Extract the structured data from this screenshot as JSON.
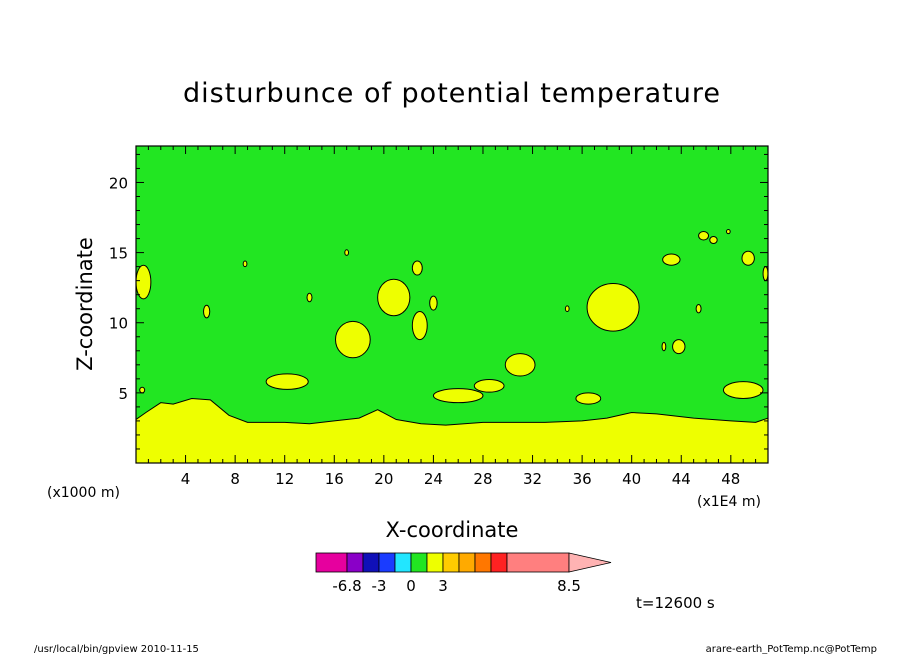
{
  "chart_data": {
    "type": "heatmap",
    "title": "disturbunce of potential temperature",
    "xlabel": "X-coordinate",
    "ylabel": "Z-coordinate",
    "x_unit_note": "(x1E4 m)",
    "y_unit_note": "(x1000 m)",
    "xlim": [
      0,
      51
    ],
    "ylim": [
      0,
      22.6
    ],
    "x_ticks": [
      4,
      8,
      12,
      16,
      20,
      24,
      28,
      32,
      36,
      40,
      44,
      48
    ],
    "y_ticks": [
      5,
      10,
      15,
      20
    ],
    "background_color": "#22e622",
    "region_color": "#eeff00",
    "boundary_layer": [
      [
        0,
        3.1
      ],
      [
        0.8,
        3.6
      ],
      [
        2,
        4.3
      ],
      [
        3,
        4.2
      ],
      [
        4.5,
        4.6
      ],
      [
        6,
        4.5
      ],
      [
        7.5,
        3.4
      ],
      [
        9,
        2.9
      ],
      [
        12,
        2.9
      ],
      [
        14,
        2.8
      ],
      [
        16,
        3.0
      ],
      [
        18,
        3.2
      ],
      [
        19.5,
        3.8
      ],
      [
        21,
        3.1
      ],
      [
        23,
        2.8
      ],
      [
        25,
        2.7
      ],
      [
        28,
        2.9
      ],
      [
        31,
        2.9
      ],
      [
        33,
        2.9
      ],
      [
        36,
        3.0
      ],
      [
        38,
        3.2
      ],
      [
        40,
        3.6
      ],
      [
        42,
        3.5
      ],
      [
        45,
        3.2
      ],
      [
        48,
        3.0
      ],
      [
        50,
        2.9
      ],
      [
        51,
        3.2
      ]
    ],
    "anomaly_patches": [
      {
        "cx": 0.6,
        "cz": 12.9,
        "rx": 0.6,
        "rz": 1.2
      },
      {
        "cx": 0.5,
        "cz": 5.2,
        "rx": 0.2,
        "rz": 0.2
      },
      {
        "cx": 5.7,
        "cz": 10.8,
        "rx": 0.25,
        "rz": 0.45
      },
      {
        "cx": 8.8,
        "cz": 14.2,
        "rx": 0.15,
        "rz": 0.2
      },
      {
        "cx": 14.0,
        "cz": 11.8,
        "rx": 0.2,
        "rz": 0.3
      },
      {
        "cx": 17.0,
        "cz": 15.0,
        "rx": 0.15,
        "rz": 0.2
      },
      {
        "cx": 17.5,
        "cz": 8.8,
        "rx": 1.4,
        "rz": 1.3
      },
      {
        "cx": 20.8,
        "cz": 11.8,
        "rx": 1.3,
        "rz": 1.3
      },
      {
        "cx": 22.7,
        "cz": 13.9,
        "rx": 0.4,
        "rz": 0.5
      },
      {
        "cx": 22.9,
        "cz": 9.8,
        "rx": 0.6,
        "rz": 1.0
      },
      {
        "cx": 24.0,
        "cz": 11.4,
        "rx": 0.3,
        "rz": 0.5
      },
      {
        "cx": 12.2,
        "cz": 5.8,
        "rx": 1.7,
        "rz": 0.55
      },
      {
        "cx": 26.0,
        "cz": 4.8,
        "rx": 2.0,
        "rz": 0.5
      },
      {
        "cx": 28.5,
        "cz": 5.5,
        "rx": 1.2,
        "rz": 0.45
      },
      {
        "cx": 31.0,
        "cz": 7.0,
        "rx": 1.2,
        "rz": 0.8
      },
      {
        "cx": 34.8,
        "cz": 11.0,
        "rx": 0.15,
        "rz": 0.2
      },
      {
        "cx": 36.5,
        "cz": 4.6,
        "rx": 1.0,
        "rz": 0.4
      },
      {
        "cx": 38.5,
        "cz": 11.1,
        "rx": 2.1,
        "rz": 1.7
      },
      {
        "cx": 42.6,
        "cz": 8.3,
        "rx": 0.15,
        "rz": 0.3
      },
      {
        "cx": 43.8,
        "cz": 8.3,
        "rx": 0.5,
        "rz": 0.5
      },
      {
        "cx": 43.2,
        "cz": 14.5,
        "rx": 0.7,
        "rz": 0.4
      },
      {
        "cx": 45.4,
        "cz": 11.0,
        "rx": 0.2,
        "rz": 0.3
      },
      {
        "cx": 45.8,
        "cz": 16.2,
        "rx": 0.4,
        "rz": 0.3
      },
      {
        "cx": 46.6,
        "cz": 15.9,
        "rx": 0.3,
        "rz": 0.25
      },
      {
        "cx": 47.8,
        "cz": 16.5,
        "rx": 0.15,
        "rz": 0.15
      },
      {
        "cx": 49.0,
        "cz": 5.2,
        "rx": 1.6,
        "rz": 0.6
      },
      {
        "cx": 49.4,
        "cz": 14.6,
        "rx": 0.5,
        "rz": 0.5
      },
      {
        "cx": 50.8,
        "cz": 13.5,
        "rx": 0.2,
        "rz": 0.5
      }
    ],
    "colorbar": {
      "colors": [
        "#e6009e",
        "#8a00c8",
        "#1010b8",
        "#1a3cff",
        "#22e6ff",
        "#22e622",
        "#eeff00",
        "#ffcc00",
        "#ffaa00",
        "#ff7700",
        "#ff2222",
        "#ff7f7f",
        "#ffb3b3"
      ],
      "tick_labels": [
        "-6.8",
        "-3",
        "0",
        "3",
        "8.5"
      ],
      "tick_after_box": [
        0,
        2,
        4,
        6,
        8
      ]
    },
    "time_label": "t=12600 s"
  },
  "footer": {
    "left": "/usr/local/bin/gpview  2010-11-15",
    "right": "arare-earth_PotTemp.nc@PotTemp"
  }
}
